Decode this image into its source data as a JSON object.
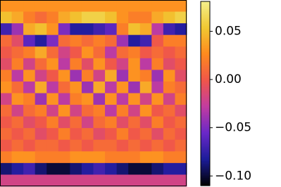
{
  "chart_data": {
    "type": "heatmap",
    "colormap": [
      "#000000",
      "#1c1c9a",
      "#6a28c8",
      "#c23ca0",
      "#f0564a",
      "#ff8a1e",
      "#f0c832",
      "#f5f08c"
    ],
    "clim": [
      -0.11,
      0.081
    ],
    "cticks": [
      {
        "value": 0.05,
        "label": "0.05"
      },
      {
        "value": 0,
        "label": "0.00"
      },
      {
        "value": -0.05,
        "label": "−0.05"
      },
      {
        "value": -0.1,
        "label": "−0.10"
      }
    ],
    "z": [
      [
        0.03,
        0.03,
        0.03,
        0.03,
        0.03,
        0.03,
        0.03,
        0.03,
        0.03,
        0.03,
        0.03,
        0.03,
        0.03,
        0.03,
        0.03,
        0.03
      ],
      [
        0.05,
        0.04,
        0.02,
        0.01,
        0.02,
        0.04,
        0.05,
        0.06,
        0.06,
        0.05,
        0.03,
        0.02,
        0.02,
        0.04,
        0.05,
        0.06
      ],
      [
        -0.07,
        -0.04,
        0.04,
        0.05,
        0.03,
        -0.05,
        -0.08,
        -0.08,
        -0.07,
        -0.06,
        0.02,
        0.05,
        0.04,
        -0.03,
        -0.07,
        -0.08
      ],
      [
        0.01,
        -0.01,
        -0.06,
        -0.08,
        -0.05,
        0.01,
        0.02,
        0.01,
        0.02,
        0.01,
        -0.04,
        -0.08,
        -0.07,
        0.0,
        0.02,
        0.02
      ],
      [
        0.0,
        0.01,
        0.02,
        0.04,
        0.01,
        -0.02,
        0.0,
        0.03,
        0.01,
        -0.03,
        0.01,
        0.02,
        0.0,
        0.01,
        0.0,
        0.01
      ],
      [
        -0.01,
        0.02,
        -0.02,
        0.01,
        0.03,
        -0.03,
        0.02,
        -0.01,
        0.03,
        0.0,
        -0.02,
        0.03,
        -0.03,
        0.02,
        -0.01,
        0.0
      ],
      [
        0.02,
        -0.03,
        0.03,
        -0.02,
        0.0,
        0.03,
        -0.04,
        0.02,
        -0.02,
        0.04,
        -0.04,
        0.03,
        0.02,
        -0.04,
        0.03,
        -0.01
      ],
      [
        0.03,
        0.01,
        -0.03,
        0.04,
        -0.03,
        0.01,
        0.03,
        -0.04,
        0.04,
        -0.03,
        0.03,
        -0.04,
        0.04,
        -0.03,
        0.02,
        0.01
      ],
      [
        -0.02,
        0.03,
        0.02,
        -0.04,
        0.03,
        -0.03,
        0.02,
        0.03,
        -0.04,
        0.03,
        -0.03,
        0.03,
        -0.02,
        0.03,
        -0.02,
        0.02
      ],
      [
        0.01,
        -0.02,
        0.01,
        0.02,
        -0.02,
        0.03,
        -0.02,
        0.01,
        0.02,
        -0.03,
        0.02,
        -0.02,
        0.03,
        0.0,
        0.01,
        -0.01
      ],
      [
        0.0,
        0.01,
        -0.01,
        0.0,
        0.02,
        -0.01,
        0.01,
        -0.02,
        0.01,
        0.02,
        -0.01,
        0.01,
        -0.01,
        0.02,
        0.0,
        0.01
      ],
      [
        0.01,
        0.0,
        0.01,
        -0.01,
        0.0,
        0.02,
        0.0,
        0.01,
        -0.01,
        0.0,
        0.02,
        0.0,
        0.01,
        -0.01,
        0.01,
        0.0
      ],
      [
        0.0,
        0.01,
        0.0,
        0.01,
        0.01,
        0.0,
        0.01,
        0.0,
        0.01,
        0.01,
        0.0,
        0.01,
        0.0,
        0.01,
        0.0,
        0.01
      ],
      [
        0.02,
        0.03,
        0.03,
        0.02,
        0.02,
        0.02,
        0.03,
        0.03,
        0.03,
        0.02,
        0.02,
        0.02,
        0.03,
        0.03,
        0.02,
        0.02
      ],
      [
        -0.09,
        -0.08,
        -0.07,
        -0.09,
        -0.1,
        -0.1,
        -0.09,
        -0.08,
        -0.07,
        -0.08,
        -0.09,
        -0.1,
        -0.1,
        -0.09,
        -0.08,
        -0.08
      ],
      [
        -0.02,
        -0.02,
        -0.02,
        -0.02,
        -0.02,
        -0.02,
        -0.02,
        -0.02,
        -0.02,
        -0.02,
        -0.02,
        -0.02,
        -0.02,
        -0.02,
        -0.02,
        -0.02
      ]
    ]
  }
}
